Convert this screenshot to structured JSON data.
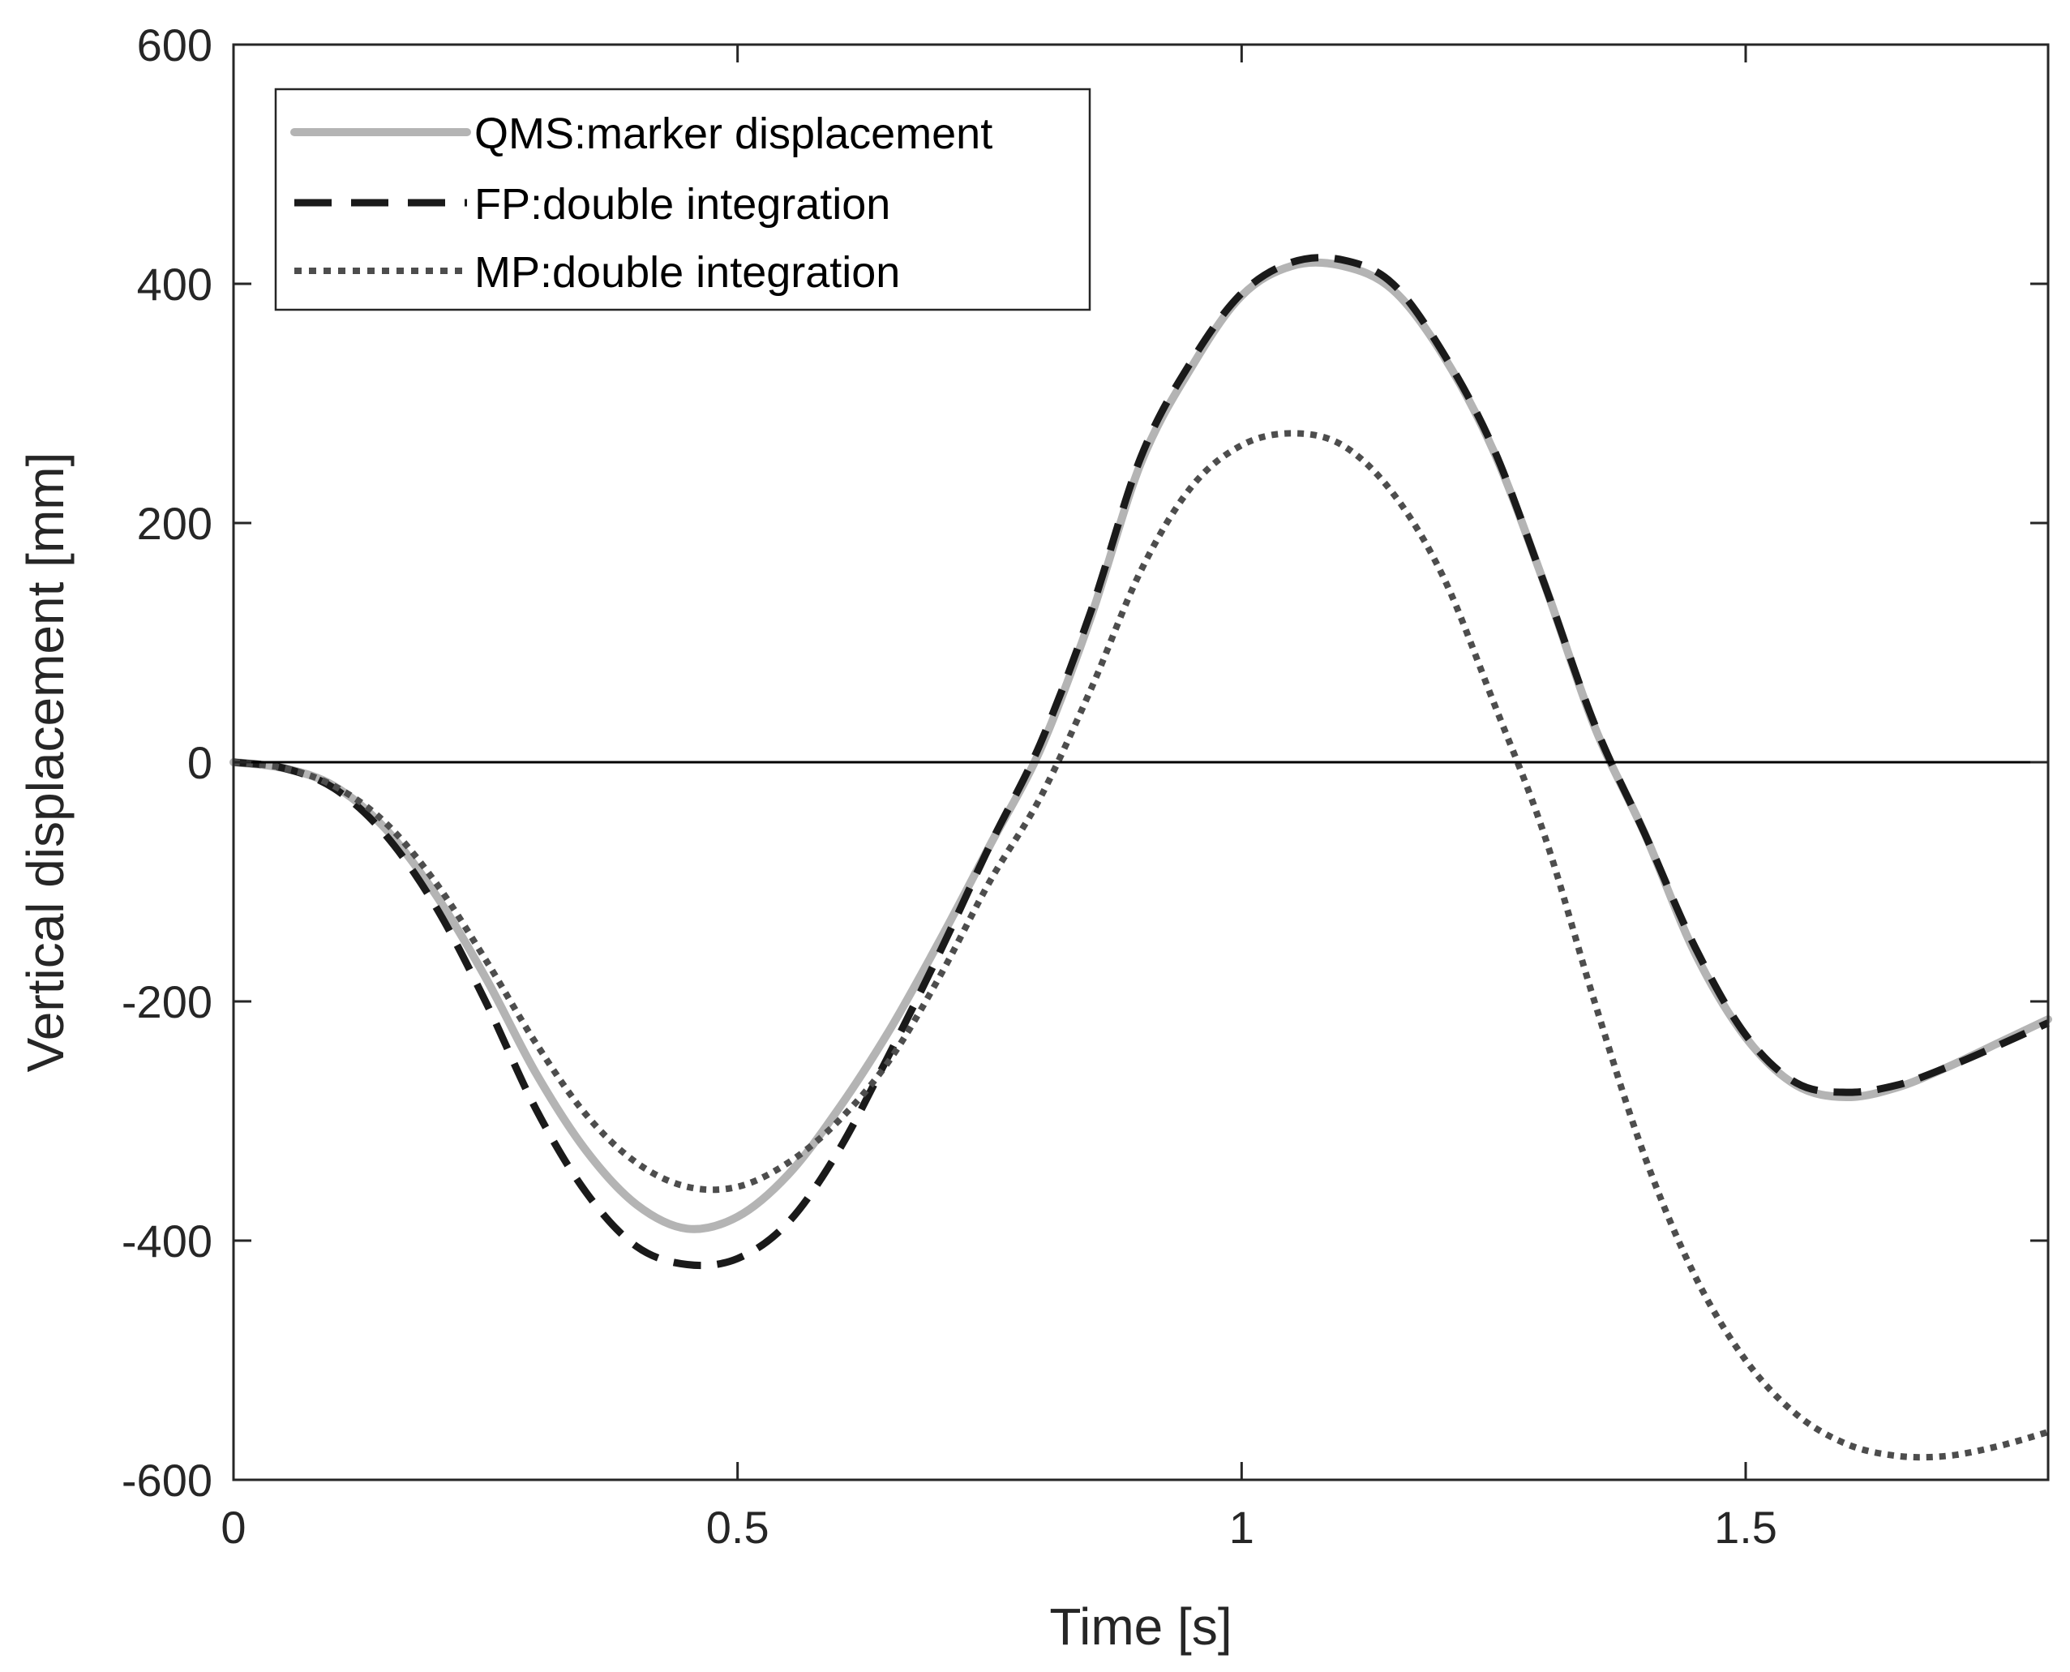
{
  "chart_data": {
    "type": "line",
    "title": "",
    "xlabel": "Time [s]",
    "ylabel": "Vertical displacement [mm]",
    "xlim": [
      0,
      1.8
    ],
    "ylim": [
      -600,
      600
    ],
    "xticks": [
      0,
      0.5,
      1,
      1.5
    ],
    "xtick_labels": [
      "0",
      "0.5",
      "1",
      "1.5"
    ],
    "yticks": [
      -600,
      -400,
      -200,
      0,
      200,
      400,
      600
    ],
    "ytick_labels": [
      "-600",
      "-400",
      "-200",
      "0",
      "200",
      "400",
      "600"
    ],
    "grid": false,
    "zero_line": true,
    "legend_position": "top-left",
    "series": [
      {
        "name": "QMS:marker displacement",
        "color": "#b4b4b4",
        "style": "solid",
        "x": [
          0,
          0.05,
          0.1,
          0.15,
          0.2,
          0.25,
          0.3,
          0.35,
          0.4,
          0.45,
          0.5,
          0.55,
          0.6,
          0.65,
          0.7,
          0.75,
          0.8,
          0.85,
          0.9,
          0.95,
          1.0,
          1.05,
          1.1,
          1.15,
          1.2,
          1.25,
          1.3,
          1.35,
          1.4,
          1.45,
          1.5,
          1.55,
          1.6,
          1.65,
          1.7,
          1.75,
          1.8
        ],
        "values": [
          0,
          -5,
          -20,
          -55,
          -110,
          -180,
          -260,
          -325,
          -370,
          -390,
          -380,
          -345,
          -290,
          -225,
          -150,
          -70,
          10,
          120,
          250,
          330,
          390,
          415,
          415,
          395,
          340,
          260,
          150,
          30,
          -60,
          -160,
          -230,
          -270,
          -280,
          -272,
          -255,
          -235,
          -215
        ]
      },
      {
        "name": "FP:double integration",
        "color": "#1a1a1a",
        "style": "dashed",
        "x": [
          0,
          0.05,
          0.1,
          0.15,
          0.2,
          0.25,
          0.3,
          0.35,
          0.4,
          0.45,
          0.5,
          0.55,
          0.6,
          0.65,
          0.7,
          0.75,
          0.8,
          0.85,
          0.9,
          0.95,
          1.0,
          1.05,
          1.1,
          1.15,
          1.2,
          1.25,
          1.3,
          1.35,
          1.4,
          1.45,
          1.5,
          1.55,
          1.6,
          1.65,
          1.7,
          1.75,
          1.8
        ],
        "values": [
          0,
          -5,
          -22,
          -60,
          -120,
          -200,
          -290,
          -360,
          -405,
          -420,
          -415,
          -385,
          -325,
          -245,
          -160,
          -70,
          15,
          125,
          255,
          335,
          392,
          418,
          420,
          400,
          342,
          262,
          150,
          32,
          -60,
          -155,
          -228,
          -268,
          -276,
          -270,
          -255,
          -237,
          -218
        ]
      },
      {
        "name": "MP:double integration",
        "color": "#4d4d4d",
        "style": "dotted",
        "x": [
          0,
          0.05,
          0.1,
          0.15,
          0.2,
          0.25,
          0.3,
          0.35,
          0.4,
          0.45,
          0.5,
          0.55,
          0.6,
          0.65,
          0.7,
          0.75,
          0.8,
          0.85,
          0.9,
          0.95,
          1.0,
          1.05,
          1.1,
          1.15,
          1.2,
          1.25,
          1.3,
          1.35,
          1.4,
          1.45,
          1.5,
          1.55,
          1.6,
          1.65,
          1.7,
          1.75,
          1.8
        ],
        "values": [
          0,
          -5,
          -20,
          -50,
          -100,
          -165,
          -235,
          -295,
          -335,
          -355,
          -355,
          -335,
          -300,
          -250,
          -180,
          -100,
          -30,
          60,
          160,
          230,
          265,
          275,
          265,
          225,
          155,
          50,
          -60,
          -200,
          -330,
          -430,
          -500,
          -545,
          -570,
          -580,
          -580,
          -572,
          -560
        ]
      }
    ]
  }
}
